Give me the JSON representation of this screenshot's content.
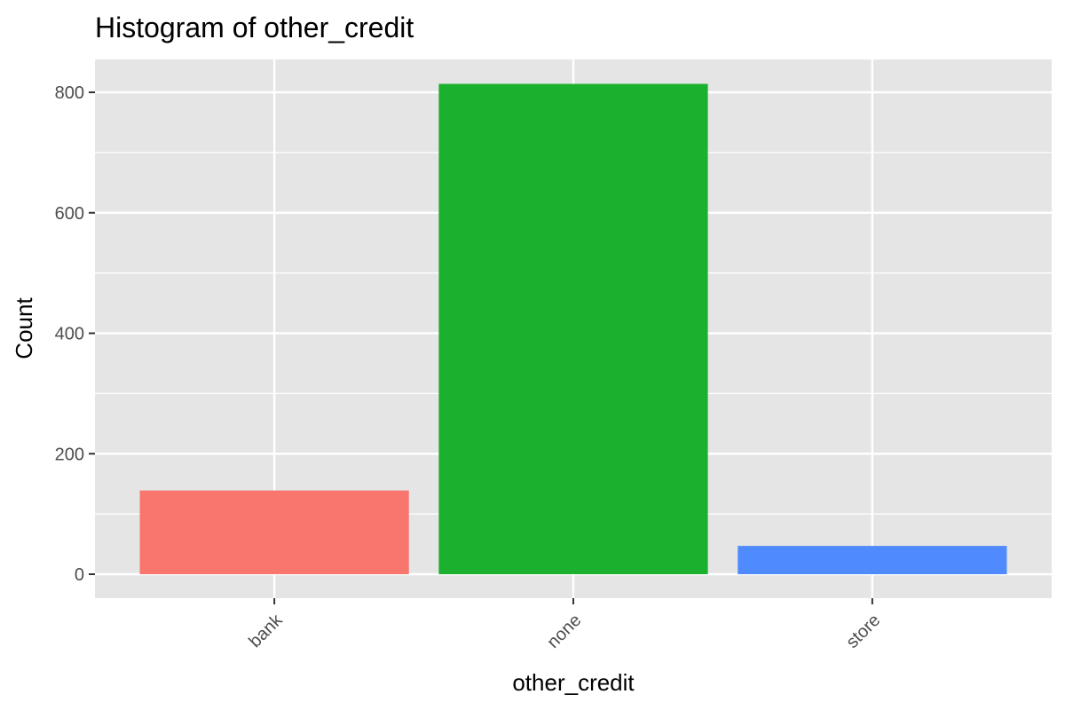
{
  "chart_data": {
    "type": "bar",
    "title": "Histogram of other_credit",
    "xlabel": "other_credit",
    "ylabel": "Count",
    "categories": [
      "bank",
      "none",
      "store"
    ],
    "values": [
      139,
      814,
      47
    ],
    "colors": [
      "#F8766D",
      "#1BB12F",
      "#4F8BFF"
    ],
    "yticks": [
      0,
      200,
      400,
      600,
      800
    ],
    "ylim": [
      -40,
      850
    ],
    "grid": true,
    "panel_background": "#E5E5E5",
    "grid_color": "#FFFFFF",
    "x_tick_rotation": -45
  }
}
